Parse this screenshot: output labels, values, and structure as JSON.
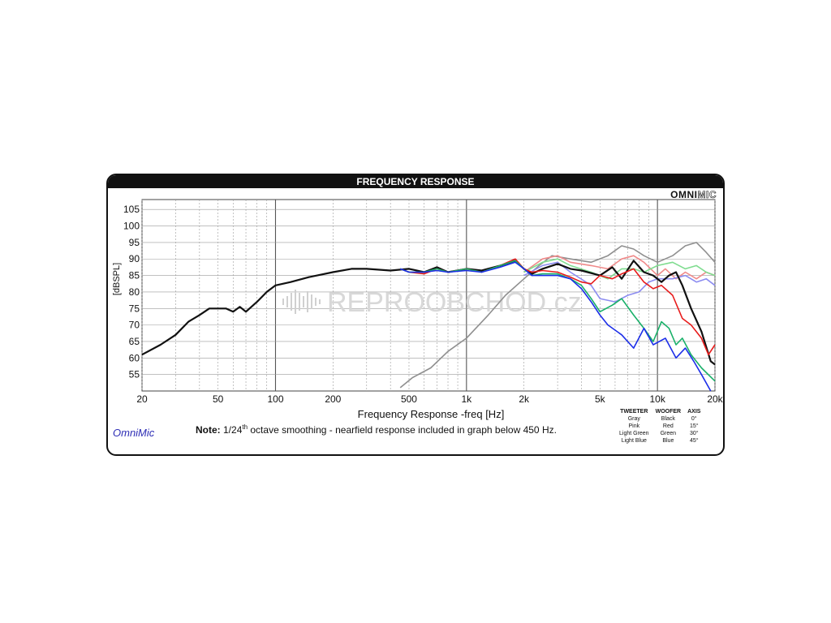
{
  "header": {
    "title": "FREQUENCY RESPONSE",
    "brand_main": "OMNI",
    "brand_alt": "MIC"
  },
  "watermark": "REPROOBCHOD.cz",
  "footer": {
    "signature": "OmniMic",
    "note_label": "Note:",
    "note_pre": " 1/24",
    "note_sup": "th",
    "note_post": " octave smoothing - nearfield response included in graph below 450 Hz."
  },
  "legend": {
    "headers": [
      "TWEETER",
      "WOOFER",
      "AXIS"
    ],
    "rows": [
      [
        "Gray",
        "Black",
        "0°"
      ],
      [
        "Pink",
        "Red",
        "15°"
      ],
      [
        "Light Green",
        "Green",
        "30°"
      ],
      [
        "Light Blue",
        "Blue",
        "45°"
      ]
    ]
  },
  "chart_data": {
    "type": "line",
    "title": "FREQUENCY RESPONSE",
    "xlabel": "Frequency Response -freq [Hz]",
    "ylabel": "[dBSPL]",
    "xscale": "log",
    "xlim": [
      20,
      20000
    ],
    "ylim": [
      50,
      108
    ],
    "grid": true,
    "x_ticks": [
      20,
      50,
      100,
      200,
      500,
      1000,
      2000,
      5000,
      10000,
      20000
    ],
    "x_tick_labels": [
      "20",
      "50",
      "100",
      "200",
      "500",
      "1k",
      "2k",
      "5k",
      "10k",
      "20k"
    ],
    "y_ticks": [
      55,
      60,
      65,
      70,
      75,
      80,
      85,
      90,
      95,
      100,
      105
    ],
    "y_tick_labels": [
      "55",
      "60",
      "65",
      "70",
      "75",
      "80",
      "85",
      "90",
      "95",
      "100",
      "105"
    ],
    "series": [
      {
        "color": "#8f8f8f",
        "points": [
          [
            450,
            51
          ],
          [
            520,
            54
          ],
          [
            650,
            57
          ],
          [
            800,
            62
          ],
          [
            1000,
            66
          ],
          [
            1300,
            73
          ],
          [
            1600,
            79
          ],
          [
            2000,
            84
          ],
          [
            2400,
            88
          ],
          [
            2800,
            91
          ],
          [
            3500,
            90
          ],
          [
            4500,
            89
          ],
          [
            5500,
            91
          ],
          [
            6500,
            94
          ],
          [
            7500,
            93
          ],
          [
            8500,
            91
          ],
          [
            10000,
            89
          ],
          [
            12000,
            91
          ],
          [
            14000,
            94
          ],
          [
            16000,
            95
          ],
          [
            18000,
            92
          ],
          [
            20000,
            89
          ]
        ]
      },
      {
        "color": "#f08a8a",
        "points": [
          [
            2000,
            86
          ],
          [
            2500,
            90
          ],
          [
            3000,
            91
          ],
          [
            3500,
            89
          ],
          [
            4500,
            88
          ],
          [
            5500,
            87
          ],
          [
            6500,
            90
          ],
          [
            7500,
            91
          ],
          [
            8500,
            89
          ],
          [
            10000,
            85
          ],
          [
            11000,
            87
          ],
          [
            12500,
            84
          ],
          [
            14000,
            86
          ],
          [
            16000,
            84
          ],
          [
            18000,
            86
          ],
          [
            20000,
            85
          ]
        ]
      },
      {
        "color": "#7fdc8f",
        "points": [
          [
            2000,
            86
          ],
          [
            2500,
            89
          ],
          [
            3000,
            90
          ],
          [
            3500,
            88
          ],
          [
            4500,
            86
          ],
          [
            5500,
            84
          ],
          [
            6500,
            87
          ],
          [
            7500,
            87
          ],
          [
            8500,
            86
          ],
          [
            10000,
            88
          ],
          [
            12000,
            89
          ],
          [
            14000,
            87
          ],
          [
            16000,
            88
          ],
          [
            18000,
            86
          ],
          [
            20000,
            85
          ]
        ]
      },
      {
        "color": "#8c8cf0",
        "points": [
          [
            2000,
            85
          ],
          [
            2500,
            88
          ],
          [
            3000,
            89
          ],
          [
            3500,
            86
          ],
          [
            4500,
            82
          ],
          [
            5000,
            78
          ],
          [
            6000,
            77
          ],
          [
            7000,
            79
          ],
          [
            8000,
            80
          ],
          [
            9000,
            83
          ],
          [
            10000,
            84
          ],
          [
            12000,
            84
          ],
          [
            14000,
            85
          ],
          [
            16000,
            83
          ],
          [
            18000,
            84
          ],
          [
            20000,
            82
          ]
        ]
      },
      {
        "color": "#111111",
        "points": [
          [
            20,
            61
          ],
          [
            25,
            64
          ],
          [
            30,
            67
          ],
          [
            35,
            71
          ],
          [
            40,
            73
          ],
          [
            45,
            75
          ],
          [
            55,
            75
          ],
          [
            60,
            74
          ],
          [
            65,
            75.5
          ],
          [
            70,
            74
          ],
          [
            80,
            77
          ],
          [
            90,
            80
          ],
          [
            100,
            82
          ],
          [
            120,
            83
          ],
          [
            150,
            84.5
          ],
          [
            200,
            86
          ],
          [
            250,
            87
          ],
          [
            300,
            87
          ],
          [
            400,
            86.5
          ],
          [
            500,
            87
          ],
          [
            600,
            86
          ],
          [
            700,
            87.5
          ],
          [
            800,
            86
          ],
          [
            1000,
            87
          ],
          [
            1200,
            86.5
          ],
          [
            1500,
            88
          ],
          [
            1800,
            89.5
          ],
          [
            2000,
            87
          ],
          [
            2200,
            85.5
          ],
          [
            2500,
            87
          ],
          [
            3000,
            88.5
          ],
          [
            3500,
            87
          ],
          [
            4000,
            86.5
          ],
          [
            5000,
            85
          ],
          [
            5800,
            87.5
          ],
          [
            6500,
            84
          ],
          [
            7500,
            89.5
          ],
          [
            8500,
            86
          ],
          [
            9500,
            85
          ],
          [
            10500,
            83
          ],
          [
            11500,
            85
          ],
          [
            12500,
            86
          ],
          [
            13500,
            82
          ],
          [
            15000,
            75
          ],
          [
            17000,
            68
          ],
          [
            19000,
            59
          ],
          [
            20000,
            58
          ]
        ]
      },
      {
        "color": "#e81c1c",
        "points": [
          [
            450,
            87
          ],
          [
            500,
            86
          ],
          [
            600,
            85.5
          ],
          [
            700,
            87
          ],
          [
            800,
            86
          ],
          [
            1000,
            87
          ],
          [
            1200,
            86
          ],
          [
            1500,
            88
          ],
          [
            1800,
            90
          ],
          [
            2000,
            87
          ],
          [
            2200,
            86
          ],
          [
            2500,
            86.5
          ],
          [
            3000,
            86
          ],
          [
            3500,
            84.5
          ],
          [
            4000,
            83
          ],
          [
            4500,
            82.5
          ],
          [
            5000,
            85
          ],
          [
            5800,
            84
          ],
          [
            6500,
            85.5
          ],
          [
            7500,
            87
          ],
          [
            8500,
            83
          ],
          [
            9500,
            81
          ],
          [
            10500,
            82
          ],
          [
            12000,
            79
          ],
          [
            13500,
            72
          ],
          [
            15000,
            70
          ],
          [
            17000,
            66
          ],
          [
            18500,
            61
          ],
          [
            20000,
            64
          ]
        ]
      },
      {
        "color": "#19b069",
        "points": [
          [
            450,
            87
          ],
          [
            500,
            86
          ],
          [
            600,
            86
          ],
          [
            700,
            87
          ],
          [
            800,
            86
          ],
          [
            1000,
            87
          ],
          [
            1200,
            86
          ],
          [
            1500,
            88
          ],
          [
            1800,
            89.5
          ],
          [
            2000,
            87
          ],
          [
            2200,
            85
          ],
          [
            2500,
            85.5
          ],
          [
            3000,
            85.5
          ],
          [
            3500,
            84
          ],
          [
            4000,
            82
          ],
          [
            4500,
            78
          ],
          [
            5000,
            74
          ],
          [
            5800,
            76
          ],
          [
            6500,
            78
          ],
          [
            7500,
            73
          ],
          [
            8500,
            69
          ],
          [
            9500,
            65
          ],
          [
            10500,
            71
          ],
          [
            11500,
            69
          ],
          [
            12500,
            64
          ],
          [
            13500,
            66
          ],
          [
            15000,
            61
          ],
          [
            17000,
            57
          ],
          [
            20000,
            53
          ]
        ]
      },
      {
        "color": "#1c2ee8",
        "points": [
          [
            450,
            87
          ],
          [
            500,
            86
          ],
          [
            600,
            86
          ],
          [
            700,
            86.5
          ],
          [
            800,
            86
          ],
          [
            1000,
            86.5
          ],
          [
            1200,
            86
          ],
          [
            1500,
            87.5
          ],
          [
            1800,
            89
          ],
          [
            2000,
            87
          ],
          [
            2200,
            85
          ],
          [
            2500,
            85
          ],
          [
            3000,
            85
          ],
          [
            3500,
            84
          ],
          [
            4000,
            81
          ],
          [
            4500,
            77
          ],
          [
            5000,
            73
          ],
          [
            5500,
            70
          ],
          [
            6500,
            67
          ],
          [
            7500,
            63
          ],
          [
            8500,
            69
          ],
          [
            9500,
            64
          ],
          [
            11000,
            66
          ],
          [
            12500,
            60
          ],
          [
            14000,
            63
          ],
          [
            15500,
            59
          ],
          [
            17000,
            55
          ],
          [
            19000,
            50
          ]
        ]
      }
    ]
  }
}
